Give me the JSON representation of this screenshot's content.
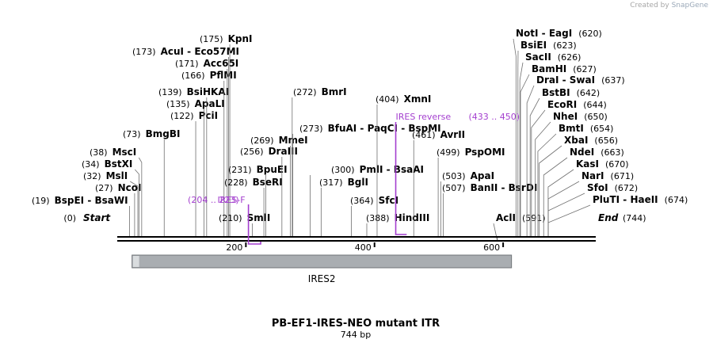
{
  "credit": {
    "prefix": "Created by",
    "brand": "SnapGene"
  },
  "plasmid": {
    "name": "PB-EF1-IRES-NEO mutant ITR",
    "length_label": "744 bp",
    "length": 744
  },
  "ends": {
    "start": {
      "label": "Start",
      "pos": "(0)"
    },
    "end": {
      "label": "End",
      "pos": "(744)"
    }
  },
  "ruler": {
    "ticks": [
      200,
      400,
      600
    ]
  },
  "features": [
    {
      "name": "IRES2",
      "start": 23,
      "end": 613,
      "color": "#a9adb1"
    }
  ],
  "primers": [
    {
      "name": "IRES-F",
      "range": "(204 .. 223)",
      "start": 204,
      "end": 223,
      "dir": "forward",
      "color": "#a43fcf"
    },
    {
      "name": "IRES reverse",
      "range": "(433 .. 450)",
      "start": 433,
      "end": 450,
      "dir": "reverse",
      "color": "#a43fcf"
    }
  ],
  "sites": [
    {
      "pos": "(19)",
      "names": [
        "BspEI",
        "BsaWI"
      ]
    },
    {
      "pos": "(27)",
      "names": [
        "NcoI"
      ]
    },
    {
      "pos": "(32)",
      "names": [
        "MslI"
      ]
    },
    {
      "pos": "(34)",
      "names": [
        "BstXI"
      ]
    },
    {
      "pos": "(38)",
      "names": [
        "MscI"
      ]
    },
    {
      "pos": "(73)",
      "names": [
        "BmgBI"
      ]
    },
    {
      "pos": "(122)",
      "names": [
        "PciI"
      ]
    },
    {
      "pos": "(135)",
      "names": [
        "ApaLI"
      ]
    },
    {
      "pos": "(139)",
      "names": [
        "BsiHKAI"
      ]
    },
    {
      "pos": "(166)",
      "names": [
        "PflMI"
      ]
    },
    {
      "pos": "(171)",
      "names": [
        "Acc65I"
      ]
    },
    {
      "pos": "(173)",
      "names": [
        "AcuI",
        "Eco57MI"
      ]
    },
    {
      "pos": "(175)",
      "names": [
        "KpnI"
      ]
    },
    {
      "pos": "(210)",
      "names": [
        "SmlI"
      ]
    },
    {
      "pos": "(228)",
      "names": [
        "BseRI"
      ]
    },
    {
      "pos": "(231)",
      "names": [
        "BpuEI"
      ]
    },
    {
      "pos": "(256)",
      "names": [
        "DraIII"
      ]
    },
    {
      "pos": "(269)",
      "names": [
        "MmeI"
      ]
    },
    {
      "pos": "(272)",
      "names": [
        "BmrI"
      ]
    },
    {
      "pos": "(273)",
      "names": [
        "BfuAI",
        "PaqCI",
        "BspMI"
      ]
    },
    {
      "pos": "(300)",
      "names": [
        "PmlI",
        "BsaAI"
      ]
    },
    {
      "pos": "(317)",
      "names": [
        "BglI"
      ]
    },
    {
      "pos": "(364)",
      "names": [
        "SfcI"
      ]
    },
    {
      "pos": "(388)",
      "names": [
        "HindIII"
      ]
    },
    {
      "pos": "(404)",
      "names": [
        "XmnI"
      ]
    },
    {
      "pos": "(461)",
      "names": [
        "AvrII"
      ]
    },
    {
      "pos": "(499)",
      "names": [
        "PspOMI"
      ]
    },
    {
      "pos": "(503)",
      "names": [
        "ApaI"
      ]
    },
    {
      "pos": "(507)",
      "names": [
        "BanII",
        "BsrDI"
      ]
    },
    {
      "pos": "(591)",
      "names": [
        "AclI"
      ]
    },
    {
      "pos": "(620)",
      "names": [
        "NotI",
        "EagI"
      ]
    },
    {
      "pos": "(623)",
      "names": [
        "BsiEI"
      ]
    },
    {
      "pos": "(626)",
      "names": [
        "SacII"
      ]
    },
    {
      "pos": "(627)",
      "names": [
        "BamHI"
      ]
    },
    {
      "pos": "(637)",
      "names": [
        "DraI",
        "SwaI"
      ]
    },
    {
      "pos": "(642)",
      "names": [
        "BstBI"
      ]
    },
    {
      "pos": "(644)",
      "names": [
        "EcoRI"
      ]
    },
    {
      "pos": "(650)",
      "names": [
        "NheI"
      ]
    },
    {
      "pos": "(654)",
      "names": [
        "BmtI"
      ]
    },
    {
      "pos": "(656)",
      "names": [
        "XbaI"
      ]
    },
    {
      "pos": "(663)",
      "names": [
        "NdeI"
      ]
    },
    {
      "pos": "(670)",
      "names": [
        "KasI"
      ]
    },
    {
      "pos": "(671)",
      "names": [
        "NarI"
      ]
    },
    {
      "pos": "(672)",
      "names": [
        "SfoI"
      ]
    },
    {
      "pos": "(674)",
      "names": [
        "PluTI",
        "HaeII"
      ]
    }
  ]
}
